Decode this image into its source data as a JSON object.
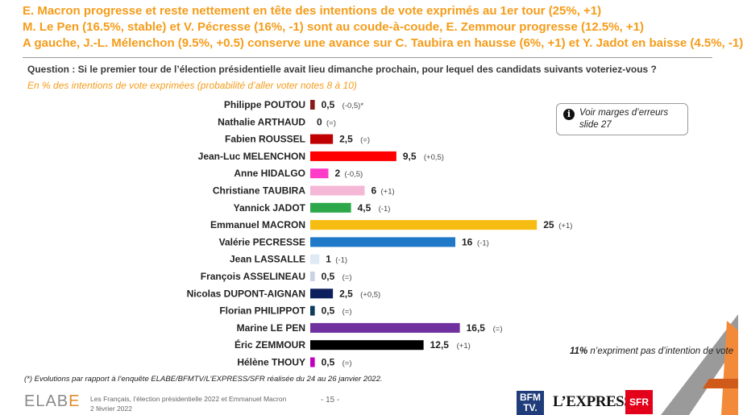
{
  "headlines": [
    "E. Macron progresse et reste nettement en tête des intentions de vote exprimés au 1er tour (25%, +1)",
    "M. Le Pen (16.5%, stable) et V. Pécresse (16%, -1) sont au coude-à-coude, E. Zemmour progresse (12.5%, +1)",
    "A gauche, J.-L. Mélenchon (9.5%, +0.5) conserve une avance sur C. Taubira en hausse (6%, +1) et Y. Jadot en baisse (4.5%, -1)"
  ],
  "question": "Question : Si le premier tour de l’élection présidentielle avait lieu dimanche prochain, pour lequel des candidats suivants voteriez-vous ?",
  "subquestion": "En % des intentions de vote exprimées (probabilité d’aller voter notes 8 à 10)",
  "note": {
    "icon": "info-icon",
    "text": "Voir marges d’erreurs slide 27"
  },
  "abstention": {
    "value": "11%",
    "text": " n’expriment pas d’intention de vote"
  },
  "footnote": "(*) Evolutions par rapport à l’enquête ELABE/BFMTV/L’EXPRESS/SFR réalisée du 24 au 26 janvier 2022.",
  "footer": {
    "logo_pre": "ELAB",
    "logo_post": "E",
    "line1": "Les Français, l’élection présidentielle 2022 et Emmanuel Macron",
    "line2": "2 février 2022",
    "page": "- 15 -",
    "brand_bfm": "BFM TV.",
    "brand_express": "L’EXPRESS",
    "brand_sfr": "SFR"
  },
  "chart_data": {
    "type": "bar",
    "orientation": "horizontal",
    "categories": [
      "Philippe POUTOU",
      "Nathalie ARTHAUD",
      "Fabien ROUSSEL",
      "Jean-Luc MELENCHON",
      "Anne HIDALGO",
      "Christiane TAUBIRA",
      "Yannick JADOT",
      "Emmanuel MACRON",
      "Valérie PECRESSE",
      "Jean LASSALLE",
      "François ASSELINEAU",
      "Nicolas DUPONT-AIGNAN",
      "Florian PHILIPPOT",
      "Marine LE PEN",
      "Éric ZEMMOUR",
      "Hélène THOUY"
    ],
    "values": [
      0.5,
      0,
      2.5,
      9.5,
      2,
      6,
      4.5,
      25,
      16,
      1,
      0.5,
      2.5,
      0.5,
      16.5,
      12.5,
      0.5
    ],
    "value_labels": [
      "0,5",
      "0",
      "2,5",
      "9,5",
      "2",
      "6",
      "4,5",
      "25",
      "16",
      "1",
      "0,5",
      "2,5",
      "0,5",
      "16,5",
      "12,5",
      "0,5"
    ],
    "evolutions": [
      "(-0,5)*",
      "(=)",
      "(=)",
      "(+0,5)",
      "(-0,5)",
      "(+1)",
      "(-1)",
      "(+1)",
      "(-1)",
      "(-1)",
      "(=)",
      "(+0,5)",
      "(=)",
      "(=)",
      "(+1)",
      "(=)"
    ],
    "colors": [
      "#8b1a1a",
      "#c00000",
      "#c00000",
      "#ff0000",
      "#ff3cc8",
      "#f4b8d6",
      "#2ca84a",
      "#f7bc12",
      "#1f78c8",
      "#dde9f5",
      "#c8d2e4",
      "#0d1f5c",
      "#0d3b5c",
      "#7030a0",
      "#000000",
      "#c000c0"
    ],
    "xlim": [
      0,
      25
    ]
  }
}
